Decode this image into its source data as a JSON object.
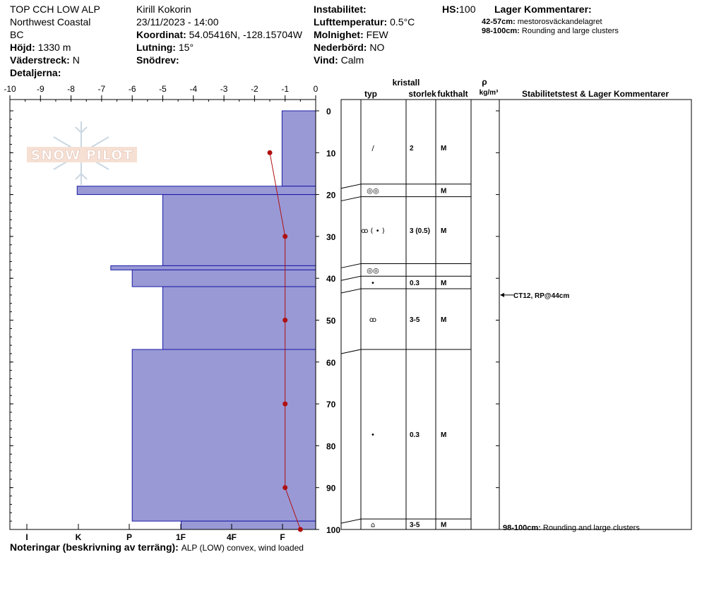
{
  "header": {
    "location": "TOP CCH LOW ALP",
    "region": "Northwest Coastal",
    "province": "BC",
    "elevation_label": "Höjd:",
    "elevation": "1330 m",
    "aspect_label": "Väderstreck:",
    "aspect": "N",
    "details_label": "Detaljerna:",
    "observer": "Kirill Kokorin",
    "datetime": "23/11/2023 - 14:00",
    "coord_label": "Koordinat:",
    "coord": "54.05416N, -128.15704W",
    "slope_label": "Lutning:",
    "slope": "15°",
    "drift_label": "Snödrev:",
    "instability_label": "Instabilitet:",
    "airtemp_label": "Lufttemperatur:",
    "airtemp": "0.5°C",
    "clouds_label": "Molnighet:",
    "clouds": "FEW",
    "precip_label": "Nederbörd:",
    "precip": "NO",
    "wind_label": "Vind:",
    "wind": "Calm",
    "hs_label": "HS:",
    "hs": "100",
    "layer_comments_title": "Lager Kommentarer:",
    "layer_comments": [
      {
        "range": "42-57cm:",
        "text": "mestorosväckandelagret"
      },
      {
        "range": "98-100cm:",
        "text": "Rounding and large clusters"
      }
    ]
  },
  "table": {
    "crystal_label": "kristall",
    "col_type": "typ",
    "col_size": "storlek",
    "col_moisture": "fukthalt",
    "col_rho": "ρ",
    "col_density": "kg/m³",
    "col_stability": "Stabilitetstest & Lager Kommentarer",
    "rows": [
      {
        "top": 0,
        "bottom": 17.5,
        "size": "2",
        "moisture": "M",
        "symbol": "/"
      },
      {
        "top": 17.5,
        "bottom": 20.5,
        "size": "",
        "moisture": "M",
        "symbol": "◎◎"
      },
      {
        "top": 20.5,
        "bottom": 36.5,
        "size": "3 (0.5)",
        "moisture": "M",
        "symbol": "ꝏ ( • )"
      },
      {
        "top": 36.5,
        "bottom": 39.5,
        "size": "",
        "moisture": "",
        "symbol": "◎◎"
      },
      {
        "top": 39.5,
        "bottom": 42.5,
        "size": "0.3",
        "moisture": "M",
        "symbol": "•"
      },
      {
        "top": 42.5,
        "bottom": 57,
        "size": "3-5",
        "moisture": "M",
        "symbol": "ꝏ"
      },
      {
        "top": 57,
        "bottom": 97.5,
        "size": "0.3",
        "moisture": "M",
        "symbol": "•"
      },
      {
        "top": 97.5,
        "bottom": 100,
        "size": "3-5",
        "moisture": "M",
        "symbol": "⌂"
      }
    ],
    "stability_tests": [
      {
        "depth": 44,
        "text": "CT12, RP@44cm"
      }
    ],
    "bottom_comment_range": "98-100cm:",
    "bottom_comment_text": "Rounding and large clusters"
  },
  "chart_data": {
    "type": "bar",
    "description_x_temp": "temperature axis (top)",
    "x_temp_ticks": [
      -10,
      -9,
      -8,
      -7,
      -6,
      -5,
      -4,
      -3,
      -2,
      -1,
      0
    ],
    "x_hardness_ticks": [
      "I",
      "K",
      "P",
      "1F",
      "4F",
      "F"
    ],
    "y_ticks": [
      0,
      10,
      20,
      30,
      40,
      50,
      60,
      70,
      80,
      90,
      100
    ],
    "ylim": [
      0,
      100
    ],
    "xlim": [
      -10,
      0
    ],
    "hardness_layers": [
      {
        "top": 0,
        "bottom": 18,
        "x": -1.1
      },
      {
        "top": 18,
        "bottom": 20,
        "x": -7.8
      },
      {
        "top": 20,
        "bottom": 37,
        "x": -5
      },
      {
        "top": 37,
        "bottom": 38,
        "x": -6.7
      },
      {
        "top": 38,
        "bottom": 42,
        "x": -6
      },
      {
        "top": 42,
        "bottom": 57,
        "x": -5
      },
      {
        "top": 57,
        "bottom": 98,
        "x": -6
      },
      {
        "top": 98,
        "bottom": 100,
        "x": -4.4
      }
    ],
    "temperature_profile": [
      {
        "depth": 10,
        "temp": -1.5
      },
      {
        "depth": 30,
        "temp": -1
      },
      {
        "depth": 50,
        "temp": -1
      },
      {
        "depth": 70,
        "temp": -1
      },
      {
        "depth": 90,
        "temp": -1
      },
      {
        "depth": 100,
        "temp": -0.5
      }
    ],
    "colors": {
      "fill": "#9999d6",
      "border": "#1a1aa6",
      "temp_line": "#b01010"
    },
    "watermark": "SNOW PILOT"
  },
  "notes": {
    "label": "Noteringar (beskrivning av terräng):",
    "value": "ALP (LOW) convex, wind loaded"
  }
}
